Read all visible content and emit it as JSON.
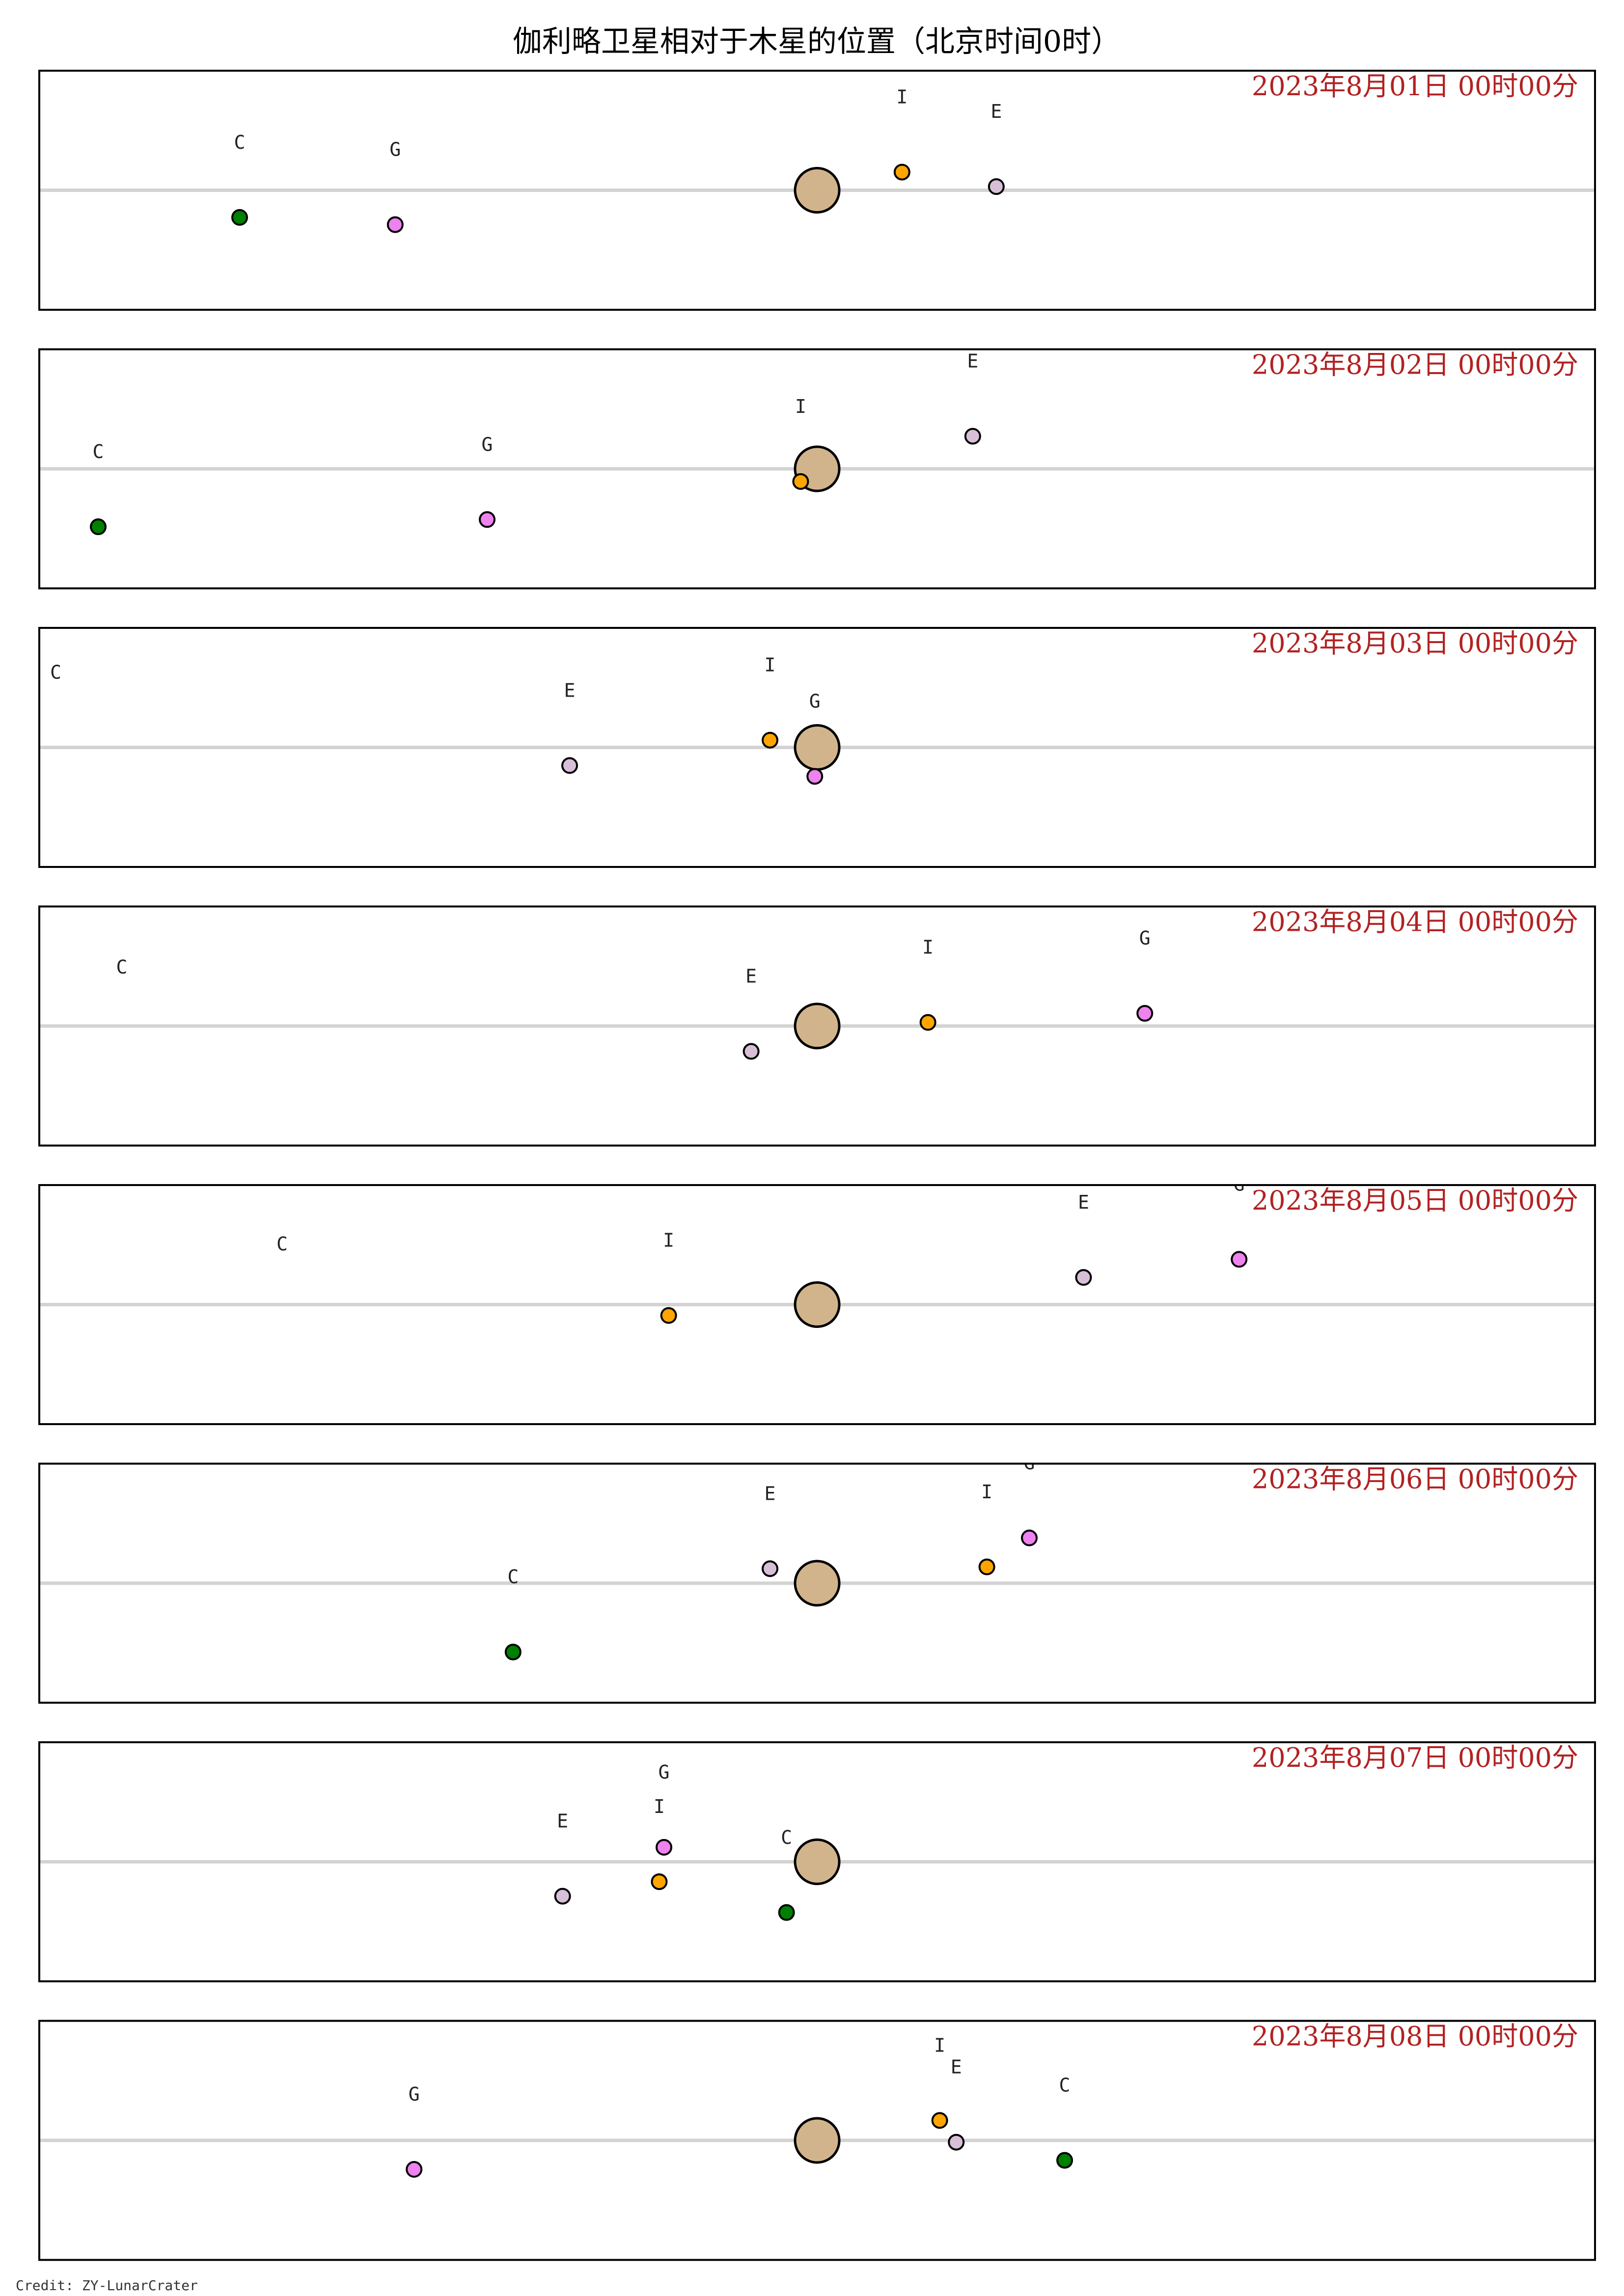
{
  "chart_data": {
    "type": "scatter",
    "title": "伽利略卫星相对于木星的位置（北京时间0时）",
    "credit": "Credit: ZY-LunarCrater",
    "x_range": [
      -33,
      33
    ],
    "y_range": [
      -3.3,
      3.3
    ],
    "grid": false,
    "colors": {
      "jupiter": "#d2b48c",
      "I": "#ffa500",
      "E": "#d8bfd8",
      "G": "#ee82ee",
      "C": "#008000",
      "axis_line": "#d3d3d3",
      "date_text": "#b22222"
    },
    "panels": [
      {
        "date": "2023年8月01日 00时00分",
        "moons": [
          {
            "name": "I",
            "x": 3.6,
            "y": 0.5
          },
          {
            "name": "E",
            "x": 7.6,
            "y": 0.1
          },
          {
            "name": "G",
            "x": -17.9,
            "y": -0.95
          },
          {
            "name": "C",
            "x": -24.5,
            "y": -0.75
          }
        ]
      },
      {
        "date": "2023年8月02日 00时00分",
        "moons": [
          {
            "name": "I",
            "x": -0.7,
            "y": -0.35
          },
          {
            "name": "E",
            "x": 6.6,
            "y": 0.9
          },
          {
            "name": "G",
            "x": -14.0,
            "y": -1.4
          },
          {
            "name": "C",
            "x": -30.5,
            "y": -1.6
          }
        ]
      },
      {
        "date": "2023年8月03日 00时00分",
        "moons": [
          {
            "name": "I",
            "x": -2.0,
            "y": 0.2
          },
          {
            "name": "E",
            "x": -10.5,
            "y": -0.5
          },
          {
            "name": "G",
            "x": -0.1,
            "y": -0.8
          },
          {
            "name": "C",
            "x": -32.3,
            "y": 0.0,
            "offscreen": true
          }
        ]
      },
      {
        "date": "2023年8月04日 00时00分",
        "moons": [
          {
            "name": "I",
            "x": 4.7,
            "y": 0.1
          },
          {
            "name": "E",
            "x": -2.8,
            "y": -0.7
          },
          {
            "name": "G",
            "x": 13.9,
            "y": 0.35
          },
          {
            "name": "C",
            "x": -29.5,
            "y": -0.45,
            "offscreen": true
          }
        ]
      },
      {
        "date": "2023年8月05日 00时00分",
        "moons": [
          {
            "name": "I",
            "x": -6.3,
            "y": -0.3
          },
          {
            "name": "E",
            "x": 11.3,
            "y": 0.75
          },
          {
            "name": "G",
            "x": 17.9,
            "y": 1.25
          },
          {
            "name": "C",
            "x": -22.7,
            "y": -0.4,
            "offscreen": true
          }
        ]
      },
      {
        "date": "2023年8月06日 00时00分",
        "moons": [
          {
            "name": "I",
            "x": 7.2,
            "y": 0.45
          },
          {
            "name": "E",
            "x": -2.0,
            "y": 0.4
          },
          {
            "name": "G",
            "x": 9.0,
            "y": 1.25
          },
          {
            "name": "C",
            "x": -12.9,
            "y": -1.9
          }
        ]
      },
      {
        "date": "2023年8月07日 00时00分",
        "moons": [
          {
            "name": "I",
            "x": -6.7,
            "y": -0.55
          },
          {
            "name": "E",
            "x": -10.8,
            "y": -0.95
          },
          {
            "name": "G",
            "x": -6.5,
            "y": 0.4
          },
          {
            "name": "C",
            "x": -1.3,
            "y": -1.4
          }
        ]
      },
      {
        "date": "2023年8月08日 00时00分",
        "moons": [
          {
            "name": "I",
            "x": 5.2,
            "y": 0.55
          },
          {
            "name": "E",
            "x": 5.9,
            "y": -0.05
          },
          {
            "name": "G",
            "x": -17.1,
            "y": -0.8
          },
          {
            "name": "C",
            "x": 10.5,
            "y": -0.55
          }
        ]
      }
    ]
  }
}
